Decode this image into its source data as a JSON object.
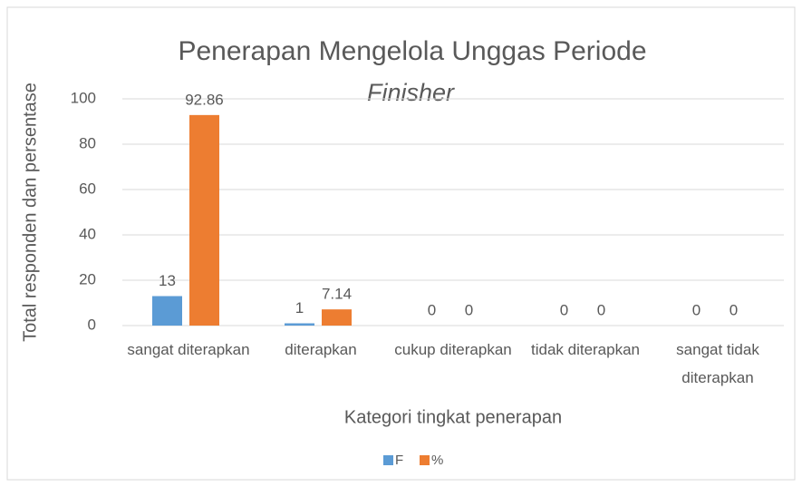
{
  "chart_data": {
    "type": "bar",
    "title": "Penerapan Mengelola Unggas Periode",
    "subtitle": "Finisher",
    "xlabel": "Kategori tingkat penerapan",
    "ylabel": "Total responden dan persentase",
    "categories": [
      "sangat diterapkan",
      "diterapkan",
      "cukup diterapkan",
      "tidak diterapkan",
      "sangat tidak diterapkan"
    ],
    "series": [
      {
        "name": "F",
        "color": "#5b9bd5",
        "values": [
          13,
          1,
          0,
          0,
          0
        ]
      },
      {
        "name": "%",
        "color": "#ed7d31",
        "values": [
          92.86,
          7.14,
          0,
          0,
          0
        ]
      }
    ],
    "ylim": [
      0,
      100
    ],
    "yticks": [
      0,
      20,
      40,
      60,
      80,
      100
    ],
    "grid": true,
    "legend": "bottom"
  }
}
